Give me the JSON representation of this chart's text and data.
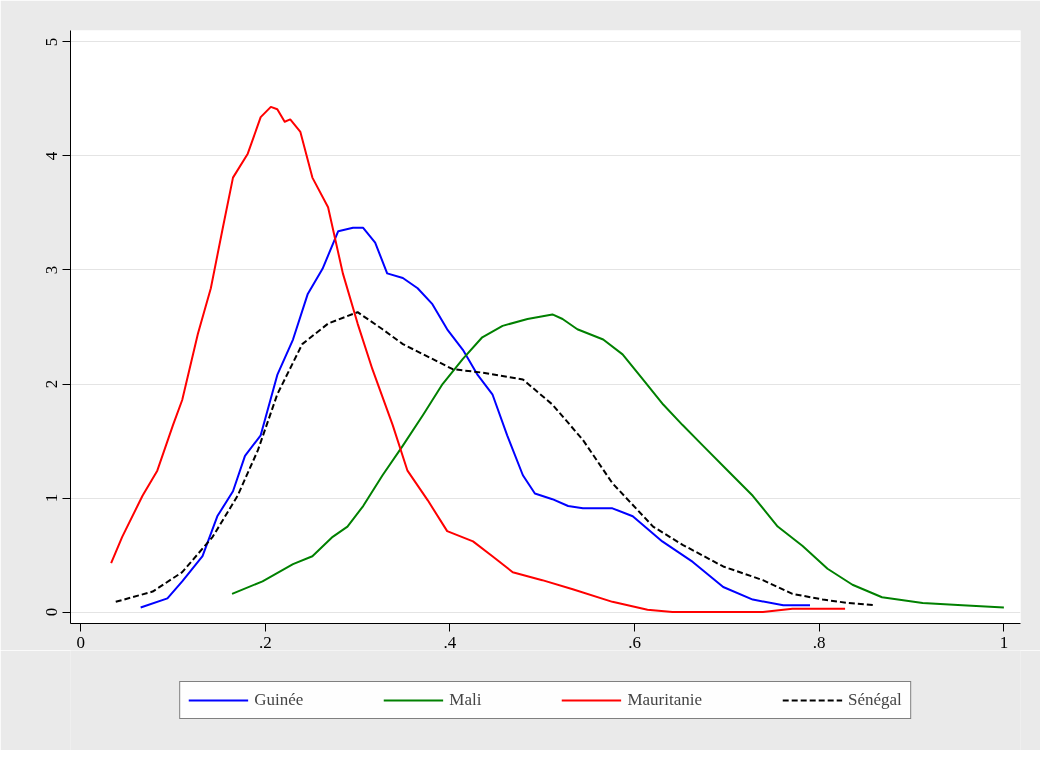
{
  "chart_data": {
    "type": "line",
    "xlim": [
      -0.011,
      1.018
    ],
    "ylim": [
      -0.1,
      5.1
    ],
    "xticks": [
      0,
      {
        "value": 0.2,
        "label": ".2"
      },
      {
        "value": 0.4,
        "label": ".4"
      },
      {
        "value": 0.6,
        "label": ".6"
      },
      {
        "value": 0.8,
        "label": ".8"
      },
      1
    ],
    "yticks": [
      0,
      1,
      2,
      3,
      4,
      5
    ],
    "grid": "y",
    "legend": "bottom",
    "marker": "none",
    "series": [
      {
        "name": "Guinée",
        "color": "#0000ff",
        "line_style": "solid",
        "x": [
          0.065,
          0.094,
          0.11,
          0.132,
          0.148,
          0.165,
          0.178,
          0.195,
          0.213,
          0.23,
          0.246,
          0.262,
          0.279,
          0.295,
          0.306,
          0.319,
          0.332,
          0.349,
          0.365,
          0.381,
          0.397,
          0.414,
          0.43,
          0.446,
          0.462,
          0.479,
          0.492,
          0.511,
          0.528,
          0.544,
          0.576,
          0.598,
          0.63,
          0.663,
          0.696,
          0.728,
          0.761,
          0.79
        ],
        "values": [
          0.04,
          0.12,
          0.27,
          0.49,
          0.84,
          1.06,
          1.37,
          1.55,
          2.08,
          2.39,
          2.79,
          3.01,
          3.34,
          3.37,
          3.37,
          3.24,
          2.97,
          2.93,
          2.84,
          2.7,
          2.48,
          2.3,
          2.08,
          1.91,
          1.55,
          1.2,
          1.04,
          0.99,
          0.93,
          0.91,
          0.91,
          0.84,
          0.62,
          0.44,
          0.22,
          0.11,
          0.06,
          0.06
        ]
      },
      {
        "name": "Mali",
        "color": "#008000",
        "line_style": "solid",
        "x": [
          0.164,
          0.197,
          0.23,
          0.251,
          0.273,
          0.289,
          0.306,
          0.327,
          0.349,
          0.371,
          0.392,
          0.414,
          0.435,
          0.457,
          0.484,
          0.511,
          0.522,
          0.538,
          0.566,
          0.587,
          0.609,
          0.631,
          0.652,
          0.674,
          0.701,
          0.728,
          0.755,
          0.782,
          0.809,
          0.836,
          0.868,
          0.912,
          0.955,
          1.0
        ],
        "values": [
          0.16,
          0.27,
          0.42,
          0.49,
          0.66,
          0.75,
          0.93,
          1.2,
          1.46,
          1.73,
          2.0,
          2.22,
          2.41,
          2.51,
          2.57,
          2.61,
          2.57,
          2.48,
          2.39,
          2.26,
          2.04,
          1.82,
          1.64,
          1.46,
          1.24,
          1.02,
          0.75,
          0.58,
          0.38,
          0.24,
          0.13,
          0.08,
          0.06,
          0.04
        ]
      },
      {
        "name": "Mauritanie",
        "color": "#ff0000",
        "line_style": "solid",
        "x": [
          0.033,
          0.045,
          0.067,
          0.083,
          0.1,
          0.11,
          0.127,
          0.141,
          0.154,
          0.165,
          0.181,
          0.195,
          0.206,
          0.213,
          0.221,
          0.227,
          0.238,
          0.251,
          0.268,
          0.284,
          0.3,
          0.316,
          0.338,
          0.354,
          0.376,
          0.397,
          0.425,
          0.446,
          0.468,
          0.5,
          0.533,
          0.576,
          0.614,
          0.641,
          0.739,
          0.771,
          0.828
        ],
        "values": [
          0.43,
          0.66,
          1.02,
          1.24,
          1.64,
          1.86,
          2.44,
          2.84,
          3.37,
          3.81,
          4.02,
          4.34,
          4.43,
          4.41,
          4.3,
          4.32,
          4.21,
          3.81,
          3.55,
          2.97,
          2.53,
          2.13,
          1.64,
          1.24,
          0.98,
          0.71,
          0.62,
          0.49,
          0.35,
          0.28,
          0.2,
          0.09,
          0.02,
          0.0,
          0.0,
          0.03,
          0.03
        ]
      },
      {
        "name": "Sénégal",
        "color": "#000000",
        "line_style": "dashed",
        "x": [
          0.038,
          0.078,
          0.11,
          0.143,
          0.17,
          0.192,
          0.213,
          0.24,
          0.268,
          0.3,
          0.327,
          0.349,
          0.381,
          0.403,
          0.435,
          0.479,
          0.511,
          0.544,
          0.576,
          0.62,
          0.652,
          0.696,
          0.739,
          0.771,
          0.804,
          0.831,
          0.861
        ],
        "values": [
          0.09,
          0.18,
          0.35,
          0.66,
          1.02,
          1.42,
          1.91,
          2.35,
          2.53,
          2.63,
          2.48,
          2.35,
          2.22,
          2.13,
          2.1,
          2.04,
          1.82,
          1.51,
          1.13,
          0.75,
          0.59,
          0.4,
          0.28,
          0.16,
          0.11,
          0.08,
          0.06
        ]
      }
    ]
  }
}
